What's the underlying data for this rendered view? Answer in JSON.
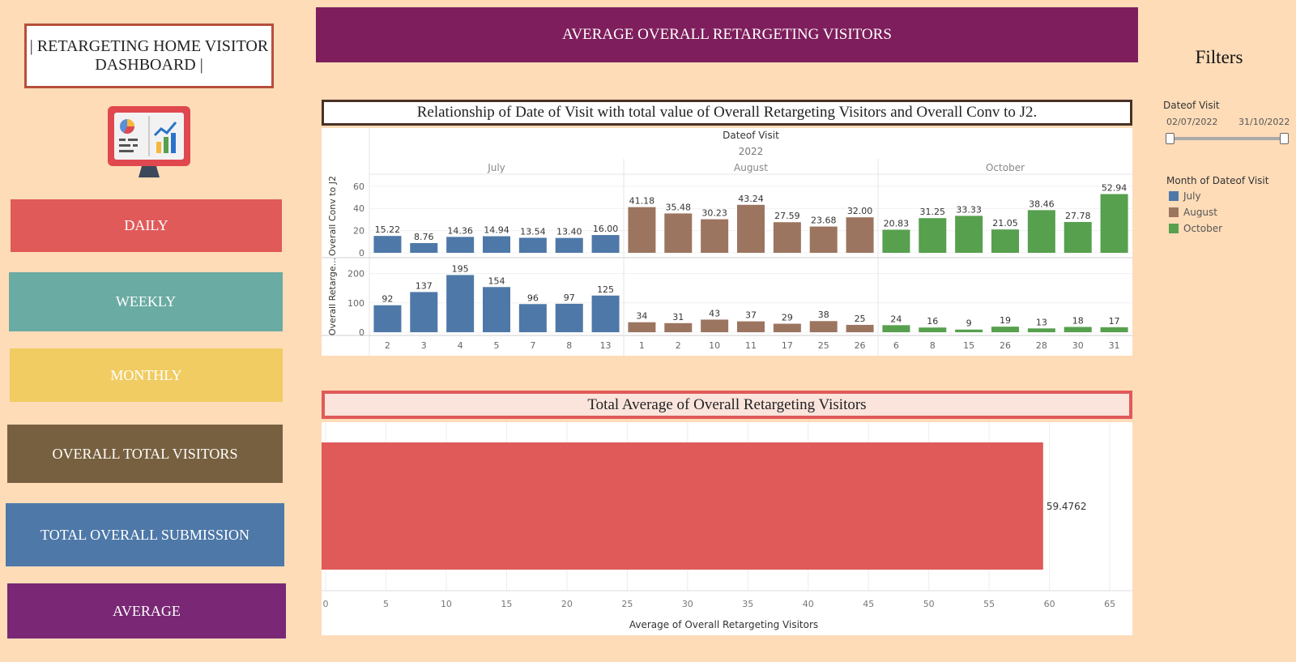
{
  "logo": {
    "title": "| RETARGETING HOME VISITOR DASHBOARD |"
  },
  "nav": {
    "items": [
      {
        "label": "DAILY",
        "color": "#e05a5a"
      },
      {
        "label": "WEEKLY",
        "color": "#6aaba3"
      },
      {
        "label": "MONTHLY",
        "color": "#f0cc62"
      },
      {
        "label": "OVERALL TOTAL VISITORS",
        "color": "#77603f"
      },
      {
        "label": "TOTAL OVERALL SUBMISSION",
        "color": "#4e78a8"
      },
      {
        "label": "AVERAGE",
        "color": "#7a2875"
      }
    ]
  },
  "header": {
    "banner": "AVERAGE OVERALL RETARGETING VISITORS"
  },
  "chart1": {
    "title": "Relationship of Date of Visit with total value of Overall Retargeting Visitors and Overall Conv to J2."
  },
  "chart2": {
    "title": "Total Average of Overall Retargeting Visitors"
  },
  "filters": {
    "title": "Filters",
    "date_label": "Dateof Visit",
    "date_start": "02/07/2022",
    "date_end": "31/10/2022",
    "legend_title": "Month of Dateof Visit",
    "legend": [
      {
        "label": "July",
        "color": "#4e78a8"
      },
      {
        "label": "August",
        "color": "#9c7560"
      },
      {
        "label": "October",
        "color": "#57a04e"
      }
    ]
  },
  "chart_data": [
    {
      "type": "bar",
      "column_header": "Dateof Visit",
      "year": "2022",
      "months": [
        {
          "name": "July",
          "color": "#4e78a8",
          "days": [
            "2",
            "3",
            "4",
            "5",
            "7",
            "8",
            "13"
          ],
          "conv": [
            "15.22",
            "8.76",
            "14.36",
            "14.94",
            "13.54",
            "13.40",
            "16.00"
          ],
          "visitors": [
            92,
            137,
            195,
            154,
            96,
            97,
            125
          ]
        },
        {
          "name": "August",
          "color": "#9c7560",
          "days": [
            "1",
            "2",
            "10",
            "11",
            "17",
            "25",
            "26"
          ],
          "conv": [
            "41.18",
            "35.48",
            "30.23",
            "43.24",
            "27.59",
            "23.68",
            "32.00"
          ],
          "visitors": [
            34,
            31,
            43,
            37,
            29,
            38,
            25
          ]
        },
        {
          "name": "October",
          "color": "#57a04e",
          "days": [
            "6",
            "8",
            "15",
            "26",
            "28",
            "30",
            "31"
          ],
          "conv": [
            "20.83",
            "31.25",
            "33.33",
            "21.05",
            "38.46",
            "27.78",
            "52.94"
          ],
          "visitors": [
            24,
            16,
            9,
            19,
            13,
            18,
            17
          ]
        }
      ],
      "conv_axis": {
        "label": "Overall Conv to J2",
        "ticks": [
          0,
          20,
          40,
          60
        ],
        "max": 65
      },
      "visitors_axis": {
        "label": "Overall Retarge...",
        "ticks": [
          0,
          100,
          200
        ],
        "max": 210
      }
    },
    {
      "type": "bar",
      "orientation": "horizontal",
      "value": 59.4762,
      "value_label": "59.4762",
      "color": "#e05a5a",
      "xlabel": "Average of Overall Retargeting Visitors",
      "ticks": [
        0,
        5,
        10,
        15,
        20,
        25,
        30,
        35,
        40,
        45,
        50,
        55,
        60,
        65
      ],
      "xlim": [
        0,
        66
      ]
    }
  ]
}
